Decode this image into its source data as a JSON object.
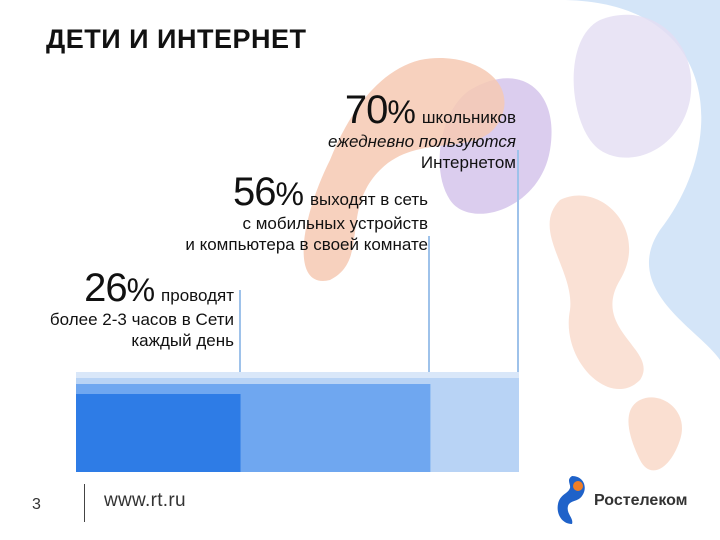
{
  "title": "ДЕТИ И ИНТЕРНЕТ",
  "stats": [
    {
      "value": 70,
      "number": "70",
      "percent_sign": "%",
      "lead": "школьников",
      "lines": [
        "ежедневно пользуются",
        "Интернетом"
      ]
    },
    {
      "value": 56,
      "number": "56",
      "percent_sign": "%",
      "lead": "выходят в сеть",
      "lines": [
        "с мобильных устройств",
        "и компьютера в своей комнате"
      ]
    },
    {
      "value": 26,
      "number": "26",
      "percent_sign": "%",
      "lead": "проводят",
      "lines": [
        "более 2-3 часов в Сети",
        "каждый день"
      ]
    }
  ],
  "footer": {
    "page_number": "3",
    "url": "www.rt.ru"
  },
  "logo": {
    "text": "Ростелеком",
    "icon": "rostelecom-logo-icon"
  },
  "colors": {
    "bar_light": "#b8d3f5",
    "bar_mid": "#6fa7f0",
    "bar_dark": "#2e7ce6",
    "accent_line": "#9ec2ea",
    "deco_peach": "#f6c9b3",
    "deco_lilac": "#d7c8ec",
    "deco_sky": "#cfe2f7",
    "logo_blue": "#1f62c9",
    "logo_orange": "#f07e26"
  }
}
